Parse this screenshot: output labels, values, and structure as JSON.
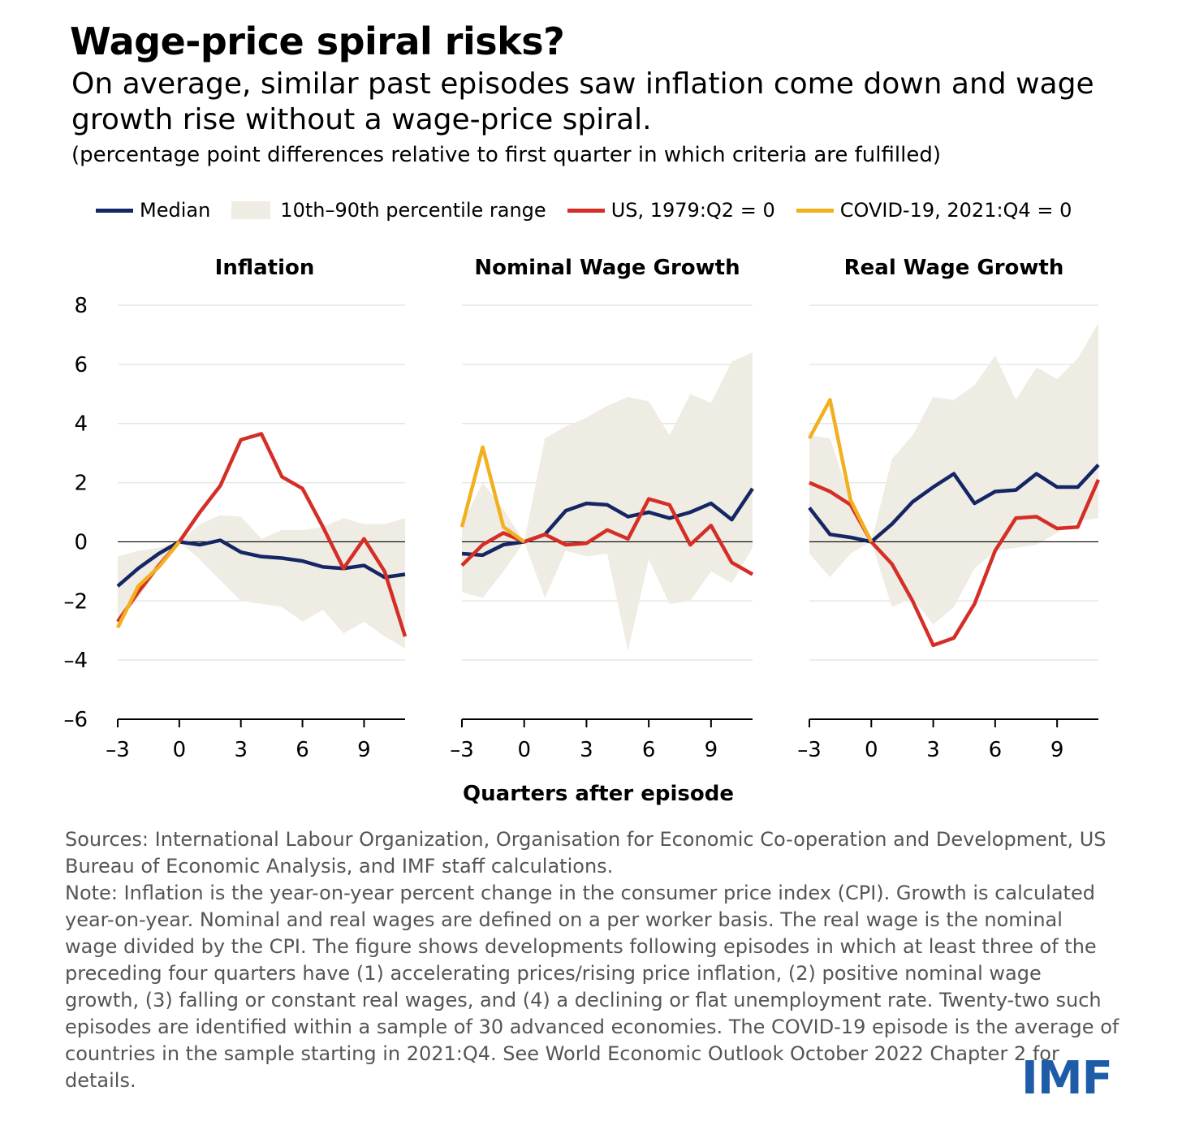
{
  "header": {
    "title": "Wage-price spiral risks?",
    "subtitle": "On average, similar past episodes saw inflation come down and wage growth rise without a wage-price spiral.",
    "units": "(percentage point differences relative to first quarter in which criteria are fulfilled)"
  },
  "legend": {
    "median": "Median",
    "band": "10th–90th percentile range",
    "us": "US, 1979:Q2 = 0",
    "covid": "COVID-19, 2021:Q4 = 0"
  },
  "colors": {
    "median": "#142664",
    "band": "#efece3",
    "us": "#d42e27",
    "covid": "#f2b01f",
    "gridline": "#e6e6e6",
    "logo": "#1f5ca8"
  },
  "chart_data": {
    "type": "line",
    "xlabel": "Quarters after episode",
    "x": [
      -3,
      -2,
      -1,
      0,
      1,
      2,
      3,
      4,
      5,
      6,
      7,
      8,
      9,
      10,
      11
    ],
    "xticks": [
      -3,
      0,
      3,
      6,
      9
    ],
    "xtick_labels": [
      "–3",
      "0",
      "3",
      "6",
      "9"
    ],
    "ylim": [
      -6,
      8
    ],
    "yticks": [
      -6,
      -4,
      -2,
      0,
      2,
      4,
      6,
      8
    ],
    "ytick_labels": [
      "–6",
      "–4",
      "–2",
      "0",
      "2",
      "4",
      "6",
      "8"
    ],
    "grid": true,
    "panels": [
      {
        "title": "Inflation",
        "band_upper": [
          -0.5,
          -0.3,
          -0.2,
          0,
          0.6,
          0.9,
          0.85,
          0.1,
          0.4,
          0.4,
          0.5,
          0.8,
          0.6,
          0.6,
          0.8
        ],
        "band_lower": [
          -2.7,
          -1.9,
          -0.9,
          0,
          -0.6,
          -1.3,
          -2.0,
          -2.1,
          -2.2,
          -2.7,
          -2.3,
          -3.1,
          -2.7,
          -3.2,
          -3.6
        ],
        "median": [
          -1.5,
          -0.9,
          -0.4,
          0,
          -0.1,
          0.05,
          -0.35,
          -0.5,
          -0.55,
          -0.65,
          -0.85,
          -0.9,
          -0.8,
          -1.2,
          -1.1
        ],
        "us": [
          -2.7,
          -1.7,
          -0.8,
          0,
          1.0,
          1.9,
          3.45,
          3.65,
          2.2,
          1.8,
          0.5,
          -0.9,
          0.1,
          -1.0,
          -3.2
        ],
        "covid": [
          -2.9,
          -1.5,
          -0.85,
          0
        ]
      },
      {
        "title": "Nominal Wage Growth",
        "band_upper": [
          0.6,
          2.0,
          1.1,
          0,
          3.5,
          3.9,
          4.2,
          4.6,
          4.9,
          4.75,
          3.6,
          5.0,
          4.7,
          6.1,
          6.4
        ],
        "band_lower": [
          -1.7,
          -1.9,
          -1.0,
          0,
          -1.9,
          -0.3,
          -0.5,
          -0.4,
          -3.7,
          -0.6,
          -2.1,
          -2.0,
          -1.0,
          -1.4,
          -0.2
        ],
        "median": [
          -0.4,
          -0.45,
          -0.1,
          0,
          0.25,
          1.05,
          1.3,
          1.25,
          0.85,
          1.0,
          0.8,
          1.0,
          1.3,
          0.75,
          1.8
        ],
        "us": [
          -0.8,
          -0.1,
          0.3,
          0,
          0.25,
          -0.1,
          -0.05,
          0.4,
          0.1,
          1.45,
          1.25,
          -0.1,
          0.55,
          -0.7,
          -1.1
        ],
        "covid": [
          0.5,
          3.2,
          0.5,
          0
        ]
      },
      {
        "title": "Real Wage Growth",
        "band_upper": [
          3.6,
          3.5,
          1.4,
          0,
          2.8,
          3.6,
          4.9,
          4.8,
          5.3,
          6.3,
          4.8,
          5.9,
          5.5,
          6.2,
          7.4
        ],
        "band_lower": [
          -0.4,
          -1.2,
          -0.4,
          0,
          -2.2,
          -1.9,
          -2.8,
          -2.2,
          -0.9,
          -0.3,
          -0.2,
          -0.1,
          0.3,
          0.7,
          0.8
        ],
        "median": [
          1.15,
          0.25,
          0.15,
          0,
          0.6,
          1.35,
          1.85,
          2.3,
          1.3,
          1.7,
          1.75,
          2.3,
          1.85,
          1.85,
          2.6
        ],
        "us": [
          2.0,
          1.7,
          1.25,
          0,
          -0.75,
          -2.0,
          -3.5,
          -3.25,
          -2.1,
          -0.3,
          0.8,
          0.85,
          0.45,
          0.5,
          2.1
        ],
        "covid": [
          3.5,
          4.8,
          1.4,
          0
        ]
      }
    ]
  },
  "footer": {
    "sources": "Sources: International Labour Organization, Organisation for Economic Co-operation and Development, US Bureau of Economic Analysis, and IMF staff calculations.",
    "note": "Note: Inflation is the year-on-year percent change in the consumer price index (CPI). Growth is calculated year-on-year. Nominal and real wages are defined on a per worker basis. The real wage is the nominal wage divided by the CPI. The figure shows developments following episodes in which at least three of the preceding four quarters have (1) accelerating prices/rising price inflation, (2) positive nominal wage growth, (3) falling or constant real wages, and (4) a declining or flat unemployment rate. Twenty-two such episodes are identified within a sample of 30 advanced economies. The COVID-19 episode is the average of countries in the sample starting in 2021:Q4. See World Economic Outlook October 2022 Chapter 2 for details.",
    "logo": "IMF"
  }
}
